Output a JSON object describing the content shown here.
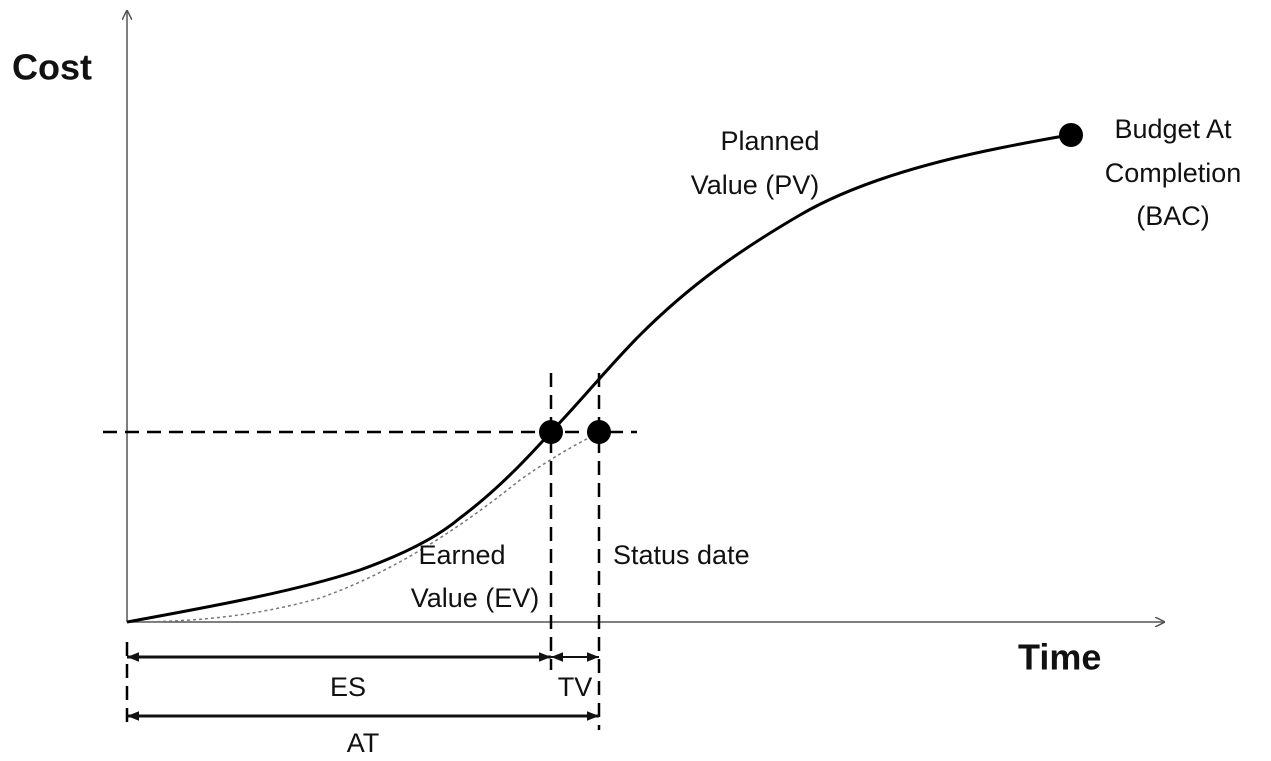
{
  "axes": {
    "y_label": "Cost",
    "x_label": "Time"
  },
  "curves": {
    "planned_value": {
      "lines": [
        "Planned",
        "Value (PV)"
      ]
    },
    "earned_value": {
      "lines": [
        "Earned",
        "Value (EV)"
      ]
    }
  },
  "points": {
    "bac": {
      "lines": [
        "Budget At",
        "Completion",
        "(BAC)"
      ]
    }
  },
  "markers": {
    "status_date": "Status date"
  },
  "spans": {
    "es": "ES",
    "tv": "TV",
    "at": "AT"
  }
}
